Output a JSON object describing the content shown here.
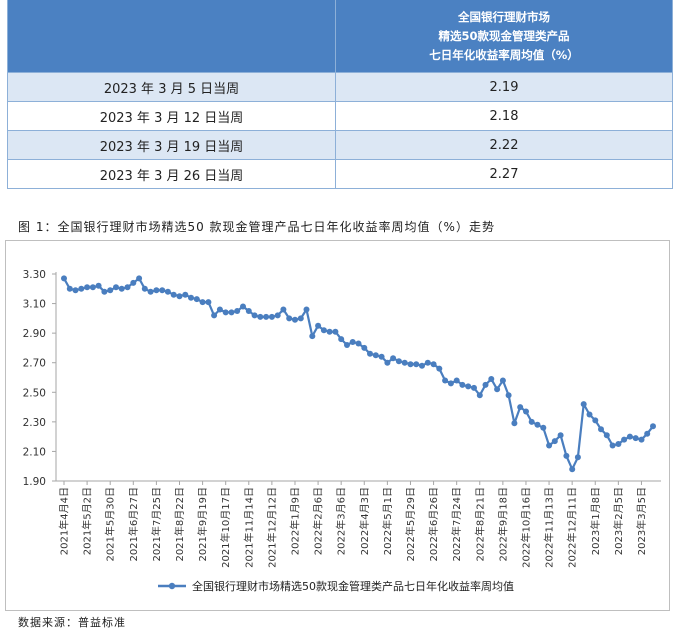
{
  "table": {
    "header_lines": [
      "全国银行理财市场",
      "精选50款现金管理类产品",
      "七日年化收益率周均值（%）"
    ],
    "rows": [
      {
        "week": "2023 年 3 月 5 日当周",
        "value": "2.19"
      },
      {
        "week": "2023 年 3 月 12 日当周",
        "value": "2.18"
      },
      {
        "week": "2023 年 3 月 19 日当周",
        "value": "2.22"
      },
      {
        "week": "2023 年 3 月 26 日当周",
        "value": "2.27"
      }
    ]
  },
  "caption": "图 1：全国银行理财市场精选50 款现金管理产品七日年化收益率周均值（%）走势",
  "source": "数据来源：普益标准",
  "colors": {
    "line": "#4a7ebf",
    "header_bg": "#4b81c2",
    "row_alt": "#dce7f4"
  },
  "chart_data": {
    "type": "line",
    "title": "",
    "xlabel": "",
    "ylabel": "",
    "ylim": [
      1.9,
      3.3
    ],
    "yticks": [
      "1.90",
      "2.10",
      "2.30",
      "2.50",
      "2.70",
      "2.90",
      "3.10",
      "3.30"
    ],
    "grid": false,
    "legend_position": "bottom-center",
    "tick_labels": [
      "2021年4月4日",
      "2021年5月2日",
      "2021年5月30日",
      "2021年6月27日",
      "2021年7月25日",
      "2021年8月22日",
      "2021年9月19日",
      "2021年10月17日",
      "2021年11月14日",
      "2021年12月12日",
      "2022年1月9日",
      "2022年2月6日",
      "2022年3月6日",
      "2022年4月3日",
      "2022年5月1日",
      "2022年5月29日",
      "2022年6月26日",
      "2022年7月24日",
      "2022年8月21日",
      "2022年9月18日",
      "2022年10月16日",
      "2022年11月13日",
      "2022年12月11日",
      "2023年1月8日",
      "2023年2月5日",
      "2023年3月5日"
    ],
    "tick_interval": 4,
    "series": [
      {
        "name": "全国银行理财市场精选50款现金管理类产品七日年化收益率周均值",
        "values": [
          3.27,
          3.2,
          3.19,
          3.2,
          3.21,
          3.21,
          3.22,
          3.18,
          3.19,
          3.21,
          3.2,
          3.21,
          3.24,
          3.27,
          3.2,
          3.18,
          3.19,
          3.19,
          3.18,
          3.16,
          3.15,
          3.16,
          3.14,
          3.13,
          3.11,
          3.11,
          3.02,
          3.06,
          3.04,
          3.04,
          3.05,
          3.08,
          3.05,
          3.02,
          3.01,
          3.01,
          3.01,
          3.02,
          3.06,
          3.0,
          2.99,
          3.0,
          3.06,
          2.88,
          2.95,
          2.92,
          2.91,
          2.91,
          2.86,
          2.82,
          2.84,
          2.83,
          2.8,
          2.76,
          2.75,
          2.74,
          2.7,
          2.73,
          2.71,
          2.7,
          2.69,
          2.69,
          2.68,
          2.7,
          2.69,
          2.66,
          2.58,
          2.56,
          2.58,
          2.55,
          2.54,
          2.53,
          2.48,
          2.55,
          2.59,
          2.52,
          2.58,
          2.48,
          2.29,
          2.4,
          2.37,
          2.3,
          2.28,
          2.26,
          2.14,
          2.17,
          2.21,
          2.07,
          1.98,
          2.06,
          2.42,
          2.35,
          2.31,
          2.25,
          2.21,
          2.14,
          2.15,
          2.18,
          2.2,
          2.19,
          2.18,
          2.22,
          2.27
        ]
      }
    ]
  }
}
